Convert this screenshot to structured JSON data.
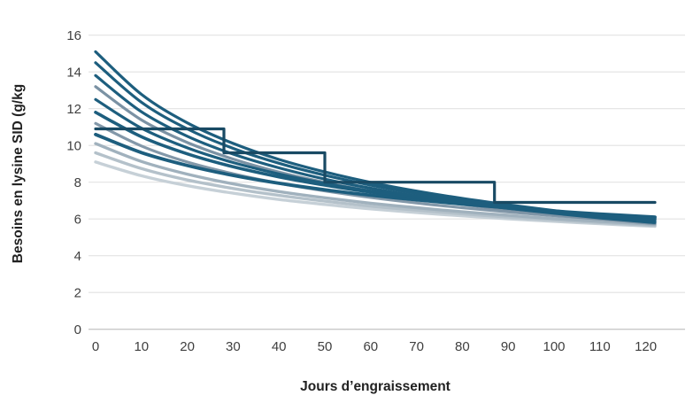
{
  "chart_data": {
    "type": "line",
    "title": "",
    "xlabel": "Jours d’engraissement",
    "ylabel": "Besoins en lysine SID (g/kg",
    "xlim": [
      0,
      123
    ],
    "ylim": [
      0,
      16
    ],
    "xticks": [
      0,
      10,
      20,
      30,
      40,
      50,
      60,
      70,
      80,
      90,
      100,
      110,
      120
    ],
    "yticks": [
      0,
      2,
      4,
      6,
      8,
      10,
      12,
      14,
      16
    ],
    "grid": "horizontal-light",
    "legend": "none",
    "gridline_color": "#e2e2e2",
    "baseline_color": "#c9c9c9",
    "x": [
      0,
      10,
      20,
      30,
      40,
      50,
      60,
      70,
      80,
      90,
      100,
      110,
      120,
      122
    ],
    "series": [
      {
        "id": "curve-12",
        "type": "smooth",
        "color": "#c6d0d7",
        "width": 3.4,
        "values": [
          9.1,
          8.35,
          7.81,
          7.4,
          7.06,
          6.79,
          6.55,
          6.35,
          6.17,
          6.01,
          5.87,
          5.74,
          5.62,
          5.6
        ]
      },
      {
        "id": "curve-11",
        "type": "smooth",
        "color": "#b4c1ca",
        "width": 3.4,
        "values": [
          9.6,
          8.74,
          8.12,
          7.66,
          7.28,
          6.97,
          6.7,
          6.48,
          6.28,
          6.1,
          5.95,
          5.8,
          5.67,
          5.65
        ]
      },
      {
        "id": "curve-10",
        "type": "smooth",
        "color": "#a0b1bd",
        "width": 3.4,
        "values": [
          10.1,
          9.13,
          8.44,
          7.91,
          7.49,
          7.15,
          6.86,
          6.61,
          6.39,
          6.2,
          6.02,
          5.87,
          5.73,
          5.7
        ]
      },
      {
        "id": "curve-9",
        "type": "smooth",
        "color": "#8398a9",
        "width": 3.2,
        "values": [
          11.2,
          9.97,
          9.1,
          8.46,
          7.94,
          7.53,
          7.17,
          6.87,
          6.61,
          6.38,
          6.18,
          6.0,
          5.83,
          5.8
        ]
      },
      {
        "id": "curve-8",
        "type": "smooth",
        "color": "#7b92a4",
        "width": 3.2,
        "values": [
          13.2,
          11.39,
          10.16,
          9.26,
          8.55,
          7.99,
          7.52,
          7.13,
          6.79,
          6.49,
          6.23,
          6.0,
          5.79,
          5.75
        ]
      },
      {
        "id": "curve-7",
        "type": "smooth",
        "color": "#1d5e7e",
        "width": 3.8,
        "values": [
          10.6,
          9.61,
          8.91,
          8.37,
          7.94,
          7.59,
          7.29,
          7.04,
          6.81,
          6.61,
          6.43,
          6.27,
          6.13,
          6.1
        ]
      },
      {
        "id": "curve-6",
        "type": "smooth",
        "color": "#1d5e7e",
        "width": 3.6,
        "values": [
          11.8,
          10.47,
          9.54,
          8.84,
          8.29,
          7.84,
          7.46,
          7.14,
          6.87,
          6.62,
          6.4,
          6.21,
          6.03,
          6.0
        ]
      },
      {
        "id": "curve-5",
        "type": "smooth",
        "color": "#1d5e7e",
        "width": 3.2,
        "values": [
          12.5,
          10.94,
          9.87,
          9.07,
          8.45,
          7.94,
          7.52,
          7.16,
          6.85,
          6.58,
          6.34,
          6.13,
          5.94,
          5.9
        ]
      },
      {
        "id": "curve-4",
        "type": "smooth",
        "color": "#1d5e7e",
        "width": 3.2,
        "values": [
          13.8,
          11.83,
          10.5,
          9.53,
          8.78,
          8.17,
          7.67,
          7.25,
          6.89,
          6.58,
          6.31,
          6.06,
          5.84,
          5.8
        ]
      },
      {
        "id": "curve-3",
        "type": "smooth",
        "color": "#1d5e7e",
        "width": 3.2,
        "values": [
          14.5,
          12.35,
          10.9,
          9.84,
          9.03,
          8.38,
          7.84,
          7.39,
          7.01,
          6.68,
          6.38,
          6.13,
          5.89,
          5.85
        ]
      },
      {
        "id": "curve-2",
        "type": "smooth",
        "color": "#1d5e7e",
        "width": 3.2,
        "values": [
          15.1,
          12.78,
          11.23,
          10.11,
          9.24,
          8.56,
          7.99,
          7.52,
          7.12,
          6.77,
          6.46,
          6.19,
          5.94,
          5.9
        ]
      },
      {
        "id": "phase-feeding-step",
        "type": "step",
        "color": "#194a64",
        "width": 3.2,
        "points": [
          [
            0,
            10.9
          ],
          [
            28,
            10.9
          ],
          [
            28,
            9.6
          ],
          [
            50,
            9.6
          ],
          [
            50,
            8.0
          ],
          [
            87,
            8.0
          ],
          [
            87,
            6.9
          ],
          [
            122,
            6.9
          ]
        ]
      }
    ]
  }
}
